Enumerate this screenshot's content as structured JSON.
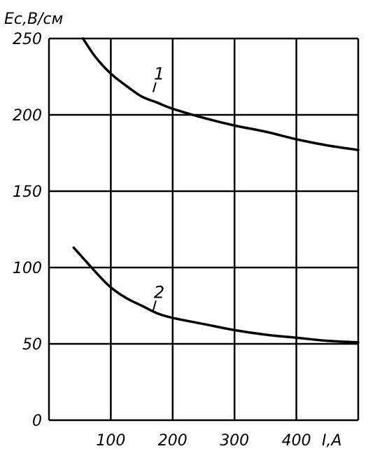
{
  "chart_data": {
    "type": "line",
    "ylabel": "Eс,В/см",
    "xlabel": "I,А",
    "xlim": [
      0,
      500
    ],
    "ylim": [
      0,
      250
    ],
    "x_ticks": [
      "100",
      "200",
      "300",
      "400"
    ],
    "x_tick_values": [
      100,
      200,
      300,
      400
    ],
    "y_ticks": [
      "250",
      "200",
      "150",
      "100",
      "50",
      "0"
    ],
    "y_tick_values": [
      250,
      200,
      150,
      100,
      50,
      0
    ],
    "grid": true,
    "series": [
      {
        "name": "1",
        "x": [
          55,
          75,
          100,
          125,
          150,
          175,
          200,
          250,
          300,
          350,
          400,
          450,
          500
        ],
        "y": [
          250,
          238,
          227,
          219,
          212,
          208,
          204,
          198,
          193,
          189,
          184,
          180,
          177
        ],
        "label_at": [
          165,
          213
        ]
      },
      {
        "name": "2",
        "x": [
          40,
          60,
          80,
          100,
          125,
          150,
          175,
          200,
          250,
          300,
          350,
          400,
          450,
          500
        ],
        "y": [
          113,
          104,
          95,
          87,
          80,
          75,
          70,
          67,
          63,
          59,
          56,
          54,
          52,
          51
        ],
        "label_at": [
          165,
          70
        ]
      }
    ]
  }
}
